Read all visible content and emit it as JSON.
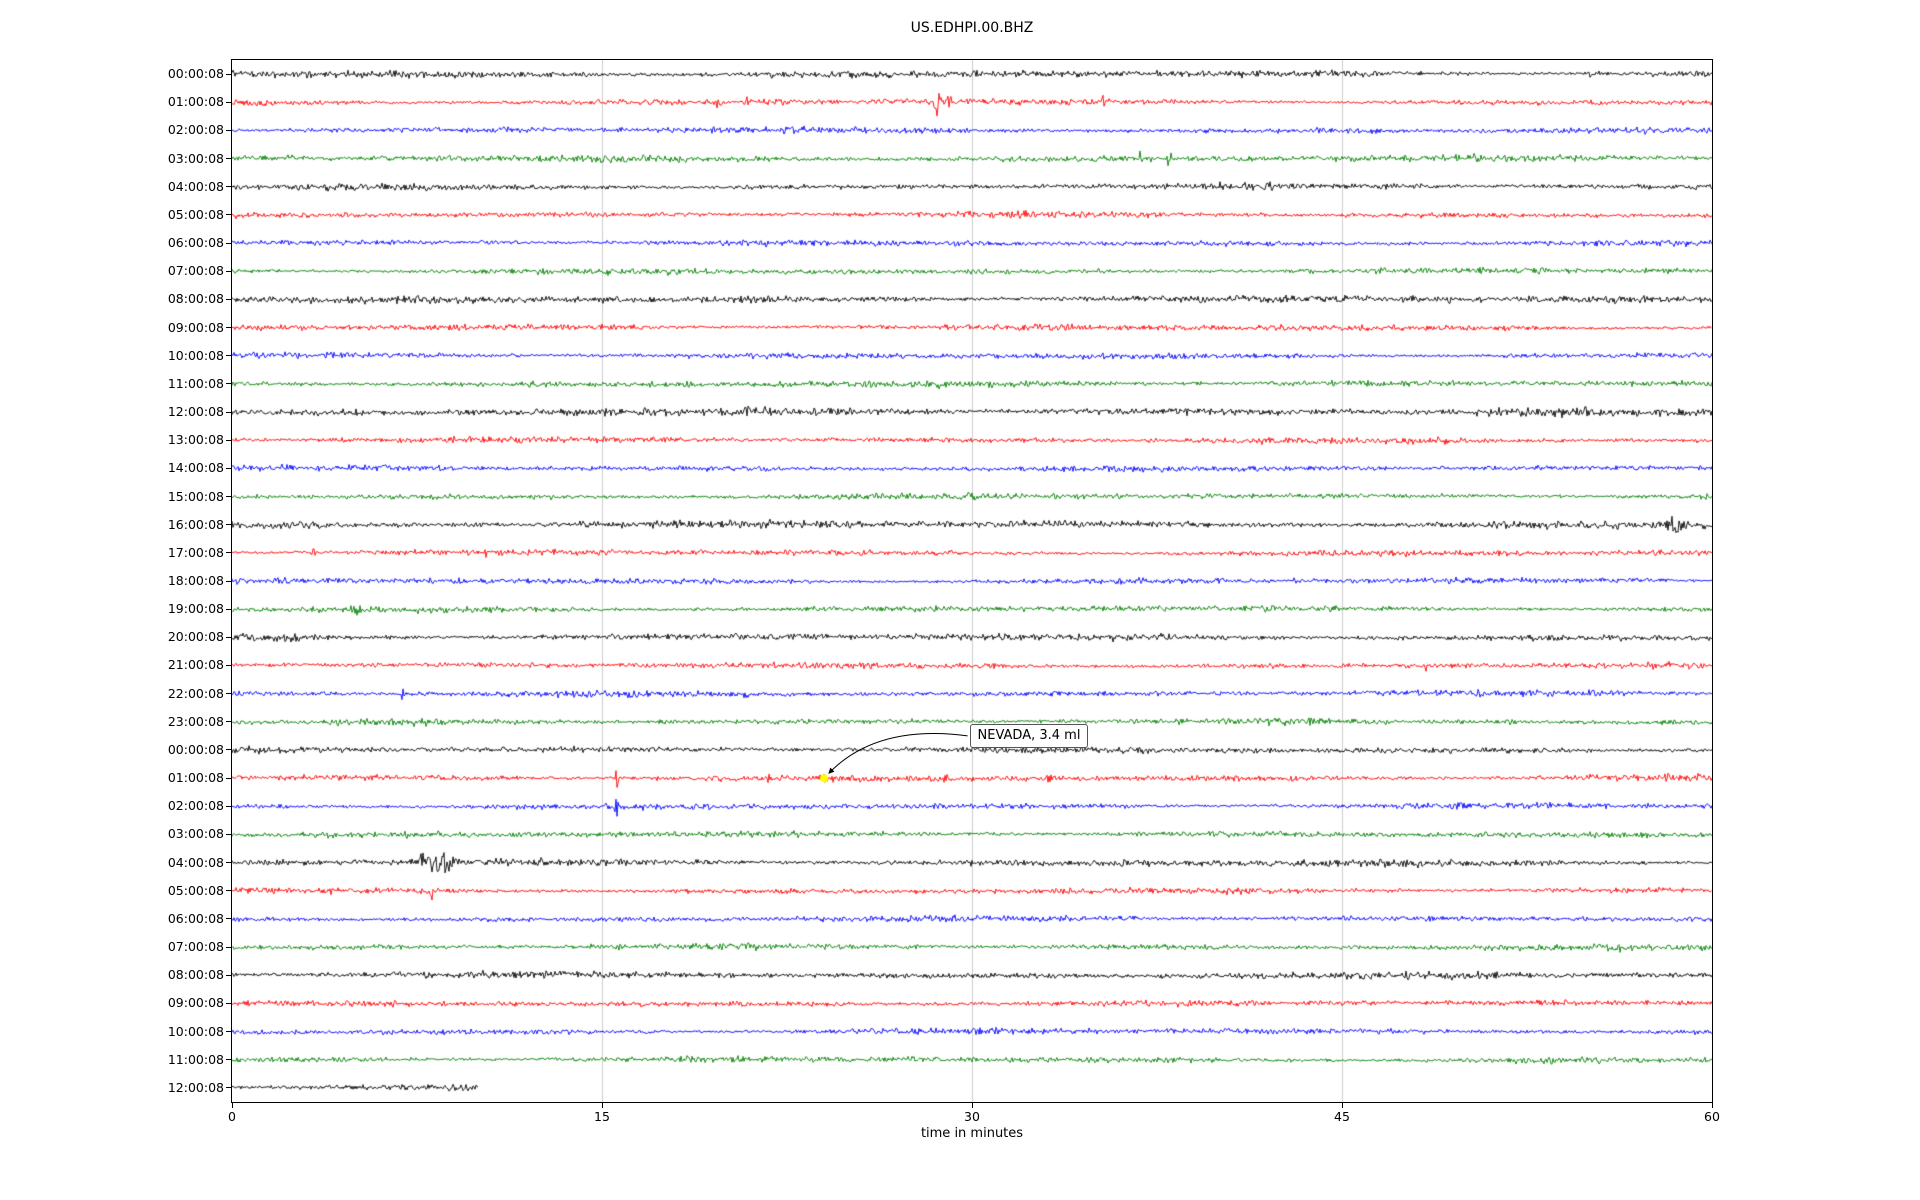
{
  "chart_data": {
    "type": "seismogram",
    "title": "US.EDHPI.00.BHZ",
    "xlabel": "time in minutes",
    "x_range": [
      0,
      60
    ],
    "xticks": [
      0,
      15,
      30,
      45,
      60
    ],
    "grid": {
      "vertical_lines_minutes": [
        15,
        30,
        45
      ],
      "color": "#cccccc"
    },
    "color_cycle": [
      "#000000",
      "#ff0000",
      "#0000ff",
      "#008000"
    ],
    "rows": [
      {
        "label": "00:00:08",
        "noise": 1.2
      },
      {
        "label": "01:00:08"
      },
      {
        "label": "02:00:08"
      },
      {
        "label": "03:00:08",
        "noise": 1.15
      },
      {
        "label": "04:00:08"
      },
      {
        "label": "05:00:08"
      },
      {
        "label": "06:00:08"
      },
      {
        "label": "07:00:08"
      },
      {
        "label": "08:00:08",
        "noise": 1.2
      },
      {
        "label": "09:00:08"
      },
      {
        "label": "10:00:08"
      },
      {
        "label": "11:00:08",
        "noise": 1.1
      },
      {
        "label": "12:00:08",
        "noise": 1.35
      },
      {
        "label": "13:00:08"
      },
      {
        "label": "14:00:08"
      },
      {
        "label": "15:00:08"
      },
      {
        "label": "16:00:08",
        "noise": 1.3
      },
      {
        "label": "17:00:08"
      },
      {
        "label": "18:00:08"
      },
      {
        "label": "19:00:08"
      },
      {
        "label": "20:00:08",
        "noise": 1.15
      },
      {
        "label": "21:00:08"
      },
      {
        "label": "22:00:08"
      },
      {
        "label": "23:00:08"
      },
      {
        "label": "00:00:08",
        "noise": 1.1
      },
      {
        "label": "01:00:08",
        "noise": 1.1
      },
      {
        "label": "02:00:08"
      },
      {
        "label": "03:00:08"
      },
      {
        "label": "04:00:08",
        "noise": 1.2
      },
      {
        "label": "05:00:08"
      },
      {
        "label": "06:00:08"
      },
      {
        "label": "07:00:08"
      },
      {
        "label": "08:00:08",
        "noise": 1.15
      },
      {
        "label": "09:00:08"
      },
      {
        "label": "10:00:08"
      },
      {
        "label": "11:00:08"
      },
      {
        "label": "12:00:08",
        "noise": 1.3,
        "end_minute": 10
      }
    ],
    "events": [
      {
        "row": 0,
        "minute": 21.8,
        "amp": 1.4,
        "dur": 0.3
      },
      {
        "row": 0,
        "minute": 55.1,
        "amp": 1.3,
        "dur": 0.4
      },
      {
        "row": 1,
        "minute": 19.7,
        "amp": 2.2,
        "dur": 0.4
      },
      {
        "row": 1,
        "minute": 20.9,
        "amp": 1.8,
        "dur": 0.3
      },
      {
        "row": 1,
        "minute": 22.3,
        "amp": 2.2,
        "dur": 0.5
      },
      {
        "row": 1,
        "minute": 28.6,
        "amp": 5.5,
        "dur": 0.25
      },
      {
        "row": 1,
        "minute": 29.1,
        "amp": 3.2,
        "dur": 0.2
      },
      {
        "row": 1,
        "minute": 35.3,
        "amp": 4.5,
        "dur": 0.18
      },
      {
        "row": 3,
        "minute": 36.8,
        "amp": 6.0,
        "dur": 0.15
      },
      {
        "row": 3,
        "minute": 38.0,
        "amp": 5.0,
        "dur": 0.18
      },
      {
        "row": 4,
        "minute": 46.3,
        "amp": 1.5,
        "dur": 0.12
      },
      {
        "row": 5,
        "minute": 23.6,
        "amp": 1.4,
        "dur": 0.1
      },
      {
        "row": 8,
        "minute": 49.4,
        "amp": 1.4,
        "dur": 0.12
      },
      {
        "row": 11,
        "minute": 18.5,
        "amp": 1.2,
        "dur": 0.6
      },
      {
        "row": 11,
        "minute": 25.7,
        "amp": 1.3,
        "dur": 0.6
      },
      {
        "row": 11,
        "minute": 46.0,
        "amp": 1.2,
        "dur": 0.6
      },
      {
        "row": 12,
        "minute": 51.8,
        "amp": 1.5,
        "dur": 0.2
      },
      {
        "row": 13,
        "minute": 41.4,
        "amp": 1.2,
        "dur": 0.15
      },
      {
        "row": 16,
        "minute": 37.8,
        "amp": 1.4,
        "dur": 0.1
      },
      {
        "row": 16,
        "minute": 58.5,
        "amp": 3.0,
        "dur": 0.9
      },
      {
        "row": 17,
        "minute": 3.3,
        "amp": 1.8,
        "dur": 0.12
      },
      {
        "row": 17,
        "minute": 10.3,
        "amp": 2.0,
        "dur": 0.12
      },
      {
        "row": 19,
        "minute": 5.0,
        "amp": 1.6,
        "dur": 0.7
      },
      {
        "row": 20,
        "minute": 2.3,
        "amp": 1.5,
        "dur": 0.15
      },
      {
        "row": 21,
        "minute": 30.9,
        "amp": 1.5,
        "dur": 0.12
      },
      {
        "row": 21,
        "minute": 48.4,
        "amp": 2.2,
        "dur": 0.12
      },
      {
        "row": 22,
        "minute": 6.9,
        "amp": 2.8,
        "dur": 0.15
      },
      {
        "row": 22,
        "minute": 20.8,
        "amp": 2.8,
        "dur": 0.15
      },
      {
        "row": 23,
        "minute": 43.7,
        "amp": 3.2,
        "dur": 0.12
      },
      {
        "row": 23,
        "minute": 49.8,
        "amp": 1.6,
        "dur": 0.2
      },
      {
        "row": 23,
        "minute": 51.8,
        "amp": 1.8,
        "dur": 0.3
      },
      {
        "row": 24,
        "minute": 42.1,
        "amp": 1.8,
        "dur": 0.12
      },
      {
        "row": 25,
        "minute": 15.6,
        "amp": 4.5,
        "dur": 0.15
      },
      {
        "row": 25,
        "minute": 24.0,
        "amp": 1.2,
        "dur": 0.2
      },
      {
        "row": 25,
        "minute": 28.9,
        "amp": 1.5,
        "dur": 0.2
      },
      {
        "row": 25,
        "minute": 33.1,
        "amp": 2.2,
        "dur": 0.5
      },
      {
        "row": 26,
        "minute": 15.6,
        "amp": 4.0,
        "dur": 0.15
      },
      {
        "row": 26,
        "minute": 20.9,
        "amp": 1.4,
        "dur": 0.1
      },
      {
        "row": 28,
        "minute": 8.4,
        "amp": 5.5,
        "dur": 1.0
      },
      {
        "row": 28,
        "minute": 7.7,
        "amp": 5.0,
        "dur": 0.2
      },
      {
        "row": 29,
        "minute": 8.1,
        "amp": 4.0,
        "dur": 0.12
      },
      {
        "row": 33,
        "minute": 54.0,
        "amp": 1.3,
        "dur": 0.12
      }
    ],
    "marker": {
      "row": 25,
      "minute": 24.0,
      "color": "#ffff00",
      "radius": 4
    },
    "annotation": {
      "text": "NEVADA, 3.4 ml",
      "minute": 29.9,
      "row": 23.5
    }
  }
}
